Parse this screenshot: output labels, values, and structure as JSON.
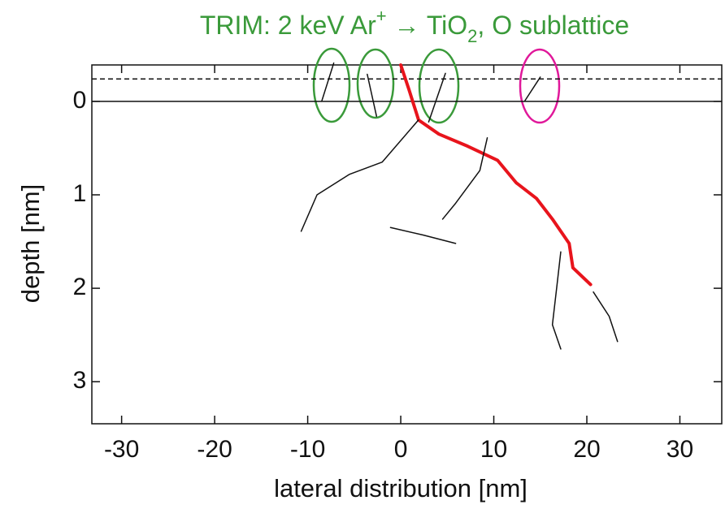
{
  "chart_data": {
    "type": "line",
    "title_parts": [
      "TRIM: 2 keV Ar",
      "+",
      " → TiO",
      "2",
      ", O sublattice"
    ],
    "title_color": "#3a9a3a",
    "x_label": "lateral distribution [nm]",
    "y_label": "depth [nm]",
    "xlim": [
      -33.2,
      34.5
    ],
    "ylim": [
      3.45,
      -0.39
    ],
    "xticks": [
      -30,
      -20,
      -10,
      0,
      10,
      20,
      30
    ],
    "yticks": [
      0,
      1,
      2,
      3
    ],
    "hlines": [
      {
        "value": 0,
        "style": "solid"
      },
      {
        "value": -0.24,
        "style": "dashed"
      }
    ],
    "series": [
      {
        "color": "#e8141c",
        "width": 4,
        "x": [
          0,
          0.87,
          1.92,
          4.1,
          7.2,
          10.4,
          12.4,
          14.6,
          16.3,
          18.1,
          18.5,
          20.4
        ],
        "y": [
          -0.39,
          -0.13,
          0.2,
          0.35,
          0.48,
          0.63,
          0.87,
          1.04,
          1.26,
          1.52,
          1.78,
          1.96
        ]
      },
      {
        "color": "#111111",
        "width": 1.5,
        "x": [
          -8.5,
          -7.2
        ],
        "y": [
          0,
          -0.41
        ]
      },
      {
        "color": "#111111",
        "width": 1.5,
        "x": [
          -2.6,
          -3.6
        ],
        "y": [
          0.16,
          -0.29
        ]
      },
      {
        "color": "#111111",
        "width": 1.5,
        "x": [
          3.0,
          4.8
        ],
        "y": [
          0.22,
          -0.3
        ]
      },
      {
        "color": "#111111",
        "width": 1.5,
        "x": [
          13.3,
          15.0
        ],
        "y": [
          0,
          -0.26
        ]
      },
      {
        "color": "#111111",
        "width": 1.5,
        "x": [
          1.9,
          -2.0,
          -5.5,
          -9.0,
          -10.7
        ],
        "y": [
          0.2,
          0.65,
          0.78,
          1.0,
          1.39
        ]
      },
      {
        "color": "#111111",
        "width": 1.5,
        "x": [
          9.3,
          8.5,
          5.9,
          4.5
        ],
        "y": [
          0.39,
          0.74,
          1.09,
          1.26
        ]
      },
      {
        "color": "#111111",
        "width": 1.5,
        "x": [
          17.2,
          16.8,
          16.3,
          17.2
        ],
        "y": [
          1.61,
          1.96,
          2.39,
          2.65
        ]
      },
      {
        "color": "#111111",
        "width": 1.5,
        "x": [
          20.7,
          22.4,
          23.3
        ],
        "y": [
          2.04,
          2.3,
          2.57
        ]
      },
      {
        "color": "#111111",
        "width": 1.5,
        "x": [
          -1.1,
          2.4,
          5.9
        ],
        "y": [
          1.35,
          1.43,
          1.52
        ]
      }
    ]
  }
}
